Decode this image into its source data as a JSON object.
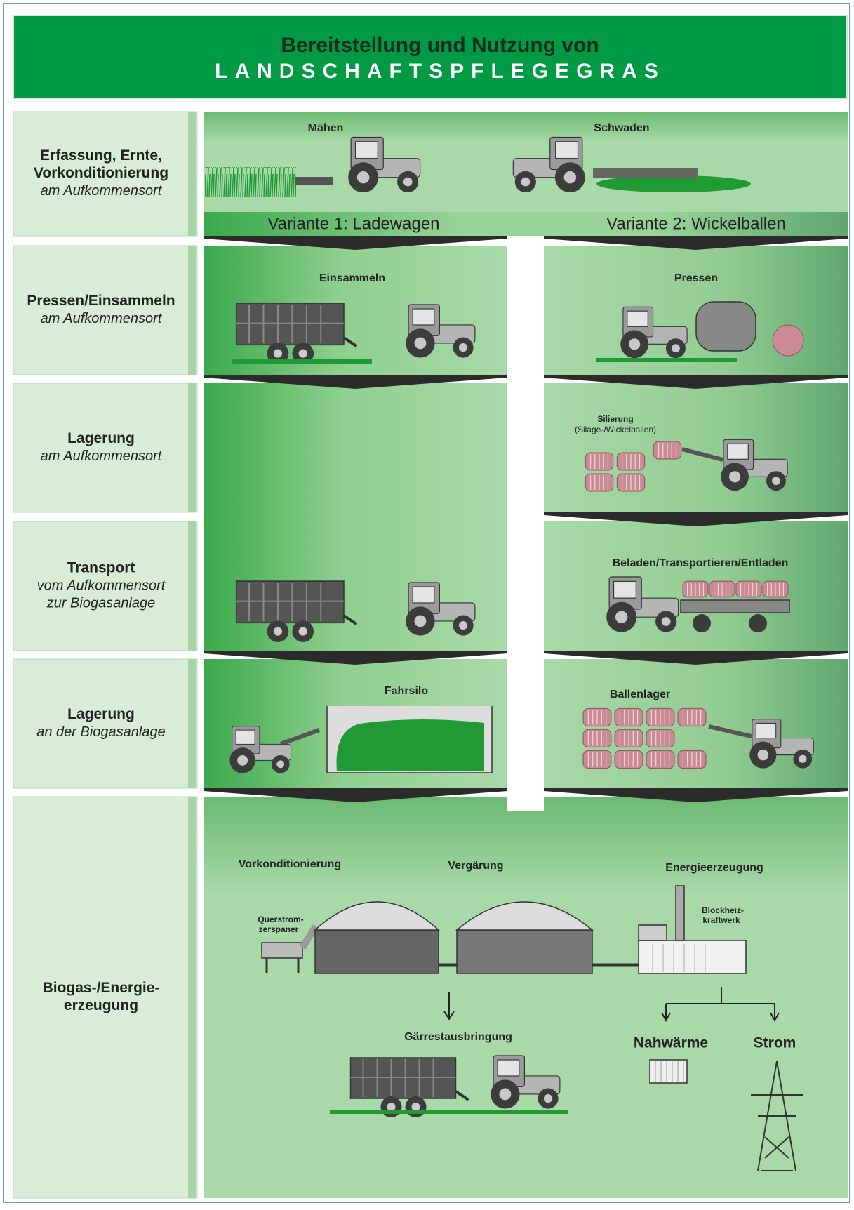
{
  "header": {
    "title": "Bereitstellung und Nutzung von",
    "subtitle": "LANDSCHAFTSPFLEGEGRAS"
  },
  "stages": [
    {
      "title": [
        "Erfassung, Ernte,",
        "Vorkonditionierung"
      ],
      "note": [
        "am Aufkommensort"
      ]
    },
    {
      "title": [
        "Pressen/Einsammeln"
      ],
      "note": [
        "am Aufkommensort"
      ]
    },
    {
      "title": [
        "Lagerung"
      ],
      "note": [
        "am Aufkommensort"
      ]
    },
    {
      "title": [
        "Transport"
      ],
      "note": [
        "vom Aufkommensort",
        "zur Biogasanlage"
      ]
    },
    {
      "title": [
        "Lagerung"
      ],
      "note": [
        "an der Biogasanlage"
      ]
    },
    {
      "title": [
        "Biogas-/Energie-",
        "erzeugung"
      ],
      "note": []
    }
  ],
  "variants": [
    "Variante 1: Ladewagen",
    "Variante 2: Wickelballen"
  ],
  "steps": {
    "mow": "Mähen",
    "windrow": "Schwaden",
    "collect": "Einsammeln",
    "press": "Pressen",
    "ensile": "Silierung",
    "ensile_note": "(Silage-/Wickelballen)",
    "haul": "Beladen/Transportieren/Entladen",
    "silo": "Fahrsilo",
    "bale_store": "Ballenlager",
    "precondition": "Vorkonditionierung",
    "ferment": "Vergärung",
    "energy": "Energieerzeugung",
    "shredder": [
      "Querstrom-",
      "zerspaner"
    ],
    "chp": [
      "Blockheiz-",
      "kraftwerk"
    ],
    "digestate": "Gärrestausbringung",
    "heat": "Nahwärme",
    "power": "Strom"
  }
}
